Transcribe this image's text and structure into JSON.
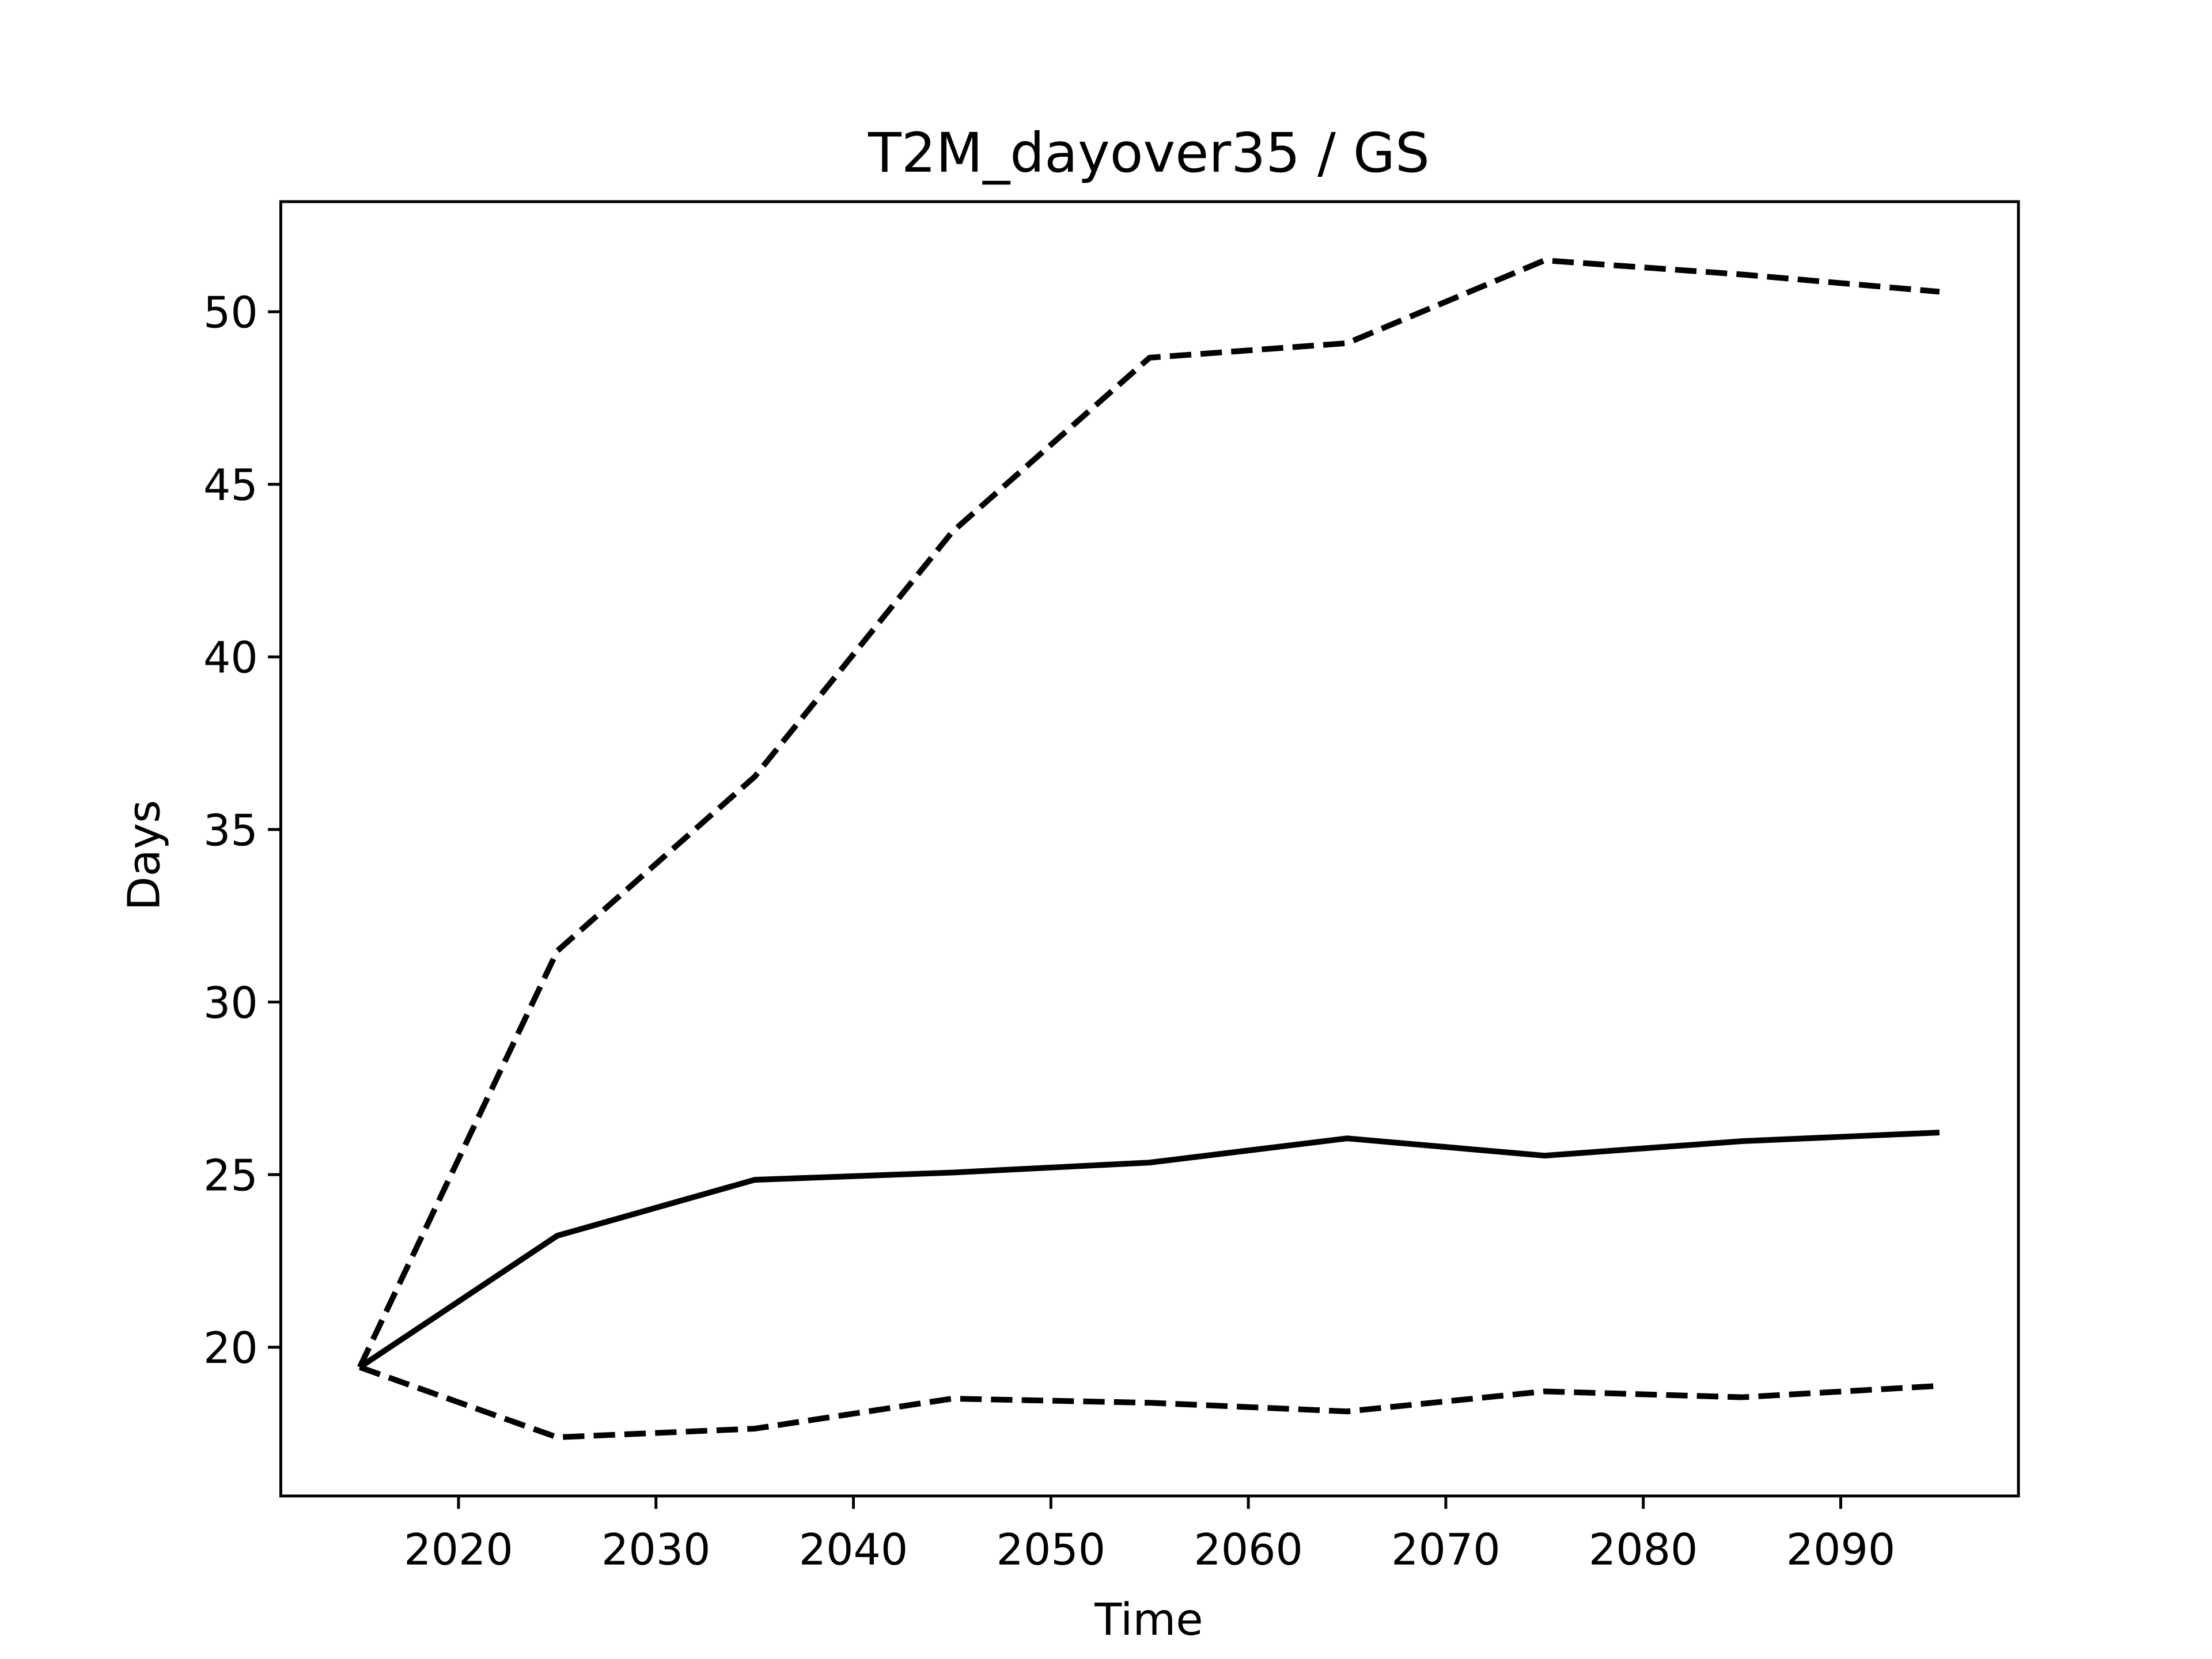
{
  "chart_data": {
    "type": "line",
    "title": "T2M_dayover35 / GS",
    "xlabel": "Time",
    "ylabel": "Days",
    "x": [
      2015,
      2025,
      2035,
      2045,
      2055,
      2065,
      2075,
      2085,
      2095
    ],
    "series": [
      {
        "color": "#000000",
        "linestyle": "solid",
        "values": [
          19.42,
          23.23,
          24.85,
          25.06,
          25.35,
          26.05,
          25.55,
          25.97,
          26.22
        ]
      },
      {
        "color": "#000000",
        "linestyle": "dashed",
        "values": [
          19.42,
          31.48,
          36.53,
          43.62,
          48.67,
          49.09,
          51.49,
          51.08,
          50.58
        ]
      },
      {
        "color": "#000000",
        "linestyle": "dashed",
        "values": [
          19.42,
          17.39,
          17.64,
          18.51,
          18.39,
          18.14,
          18.72,
          18.55,
          18.88
        ]
      }
    ],
    "xlim": [
      2011,
      2099
    ],
    "xticks": [
      2020,
      2030,
      2040,
      2050,
      2060,
      2070,
      2080,
      2090
    ],
    "ylim": [
      15.69,
      53.19
    ],
    "yticks": [
      20,
      25,
      30,
      35,
      40,
      45,
      50
    ],
    "grid": false
  }
}
